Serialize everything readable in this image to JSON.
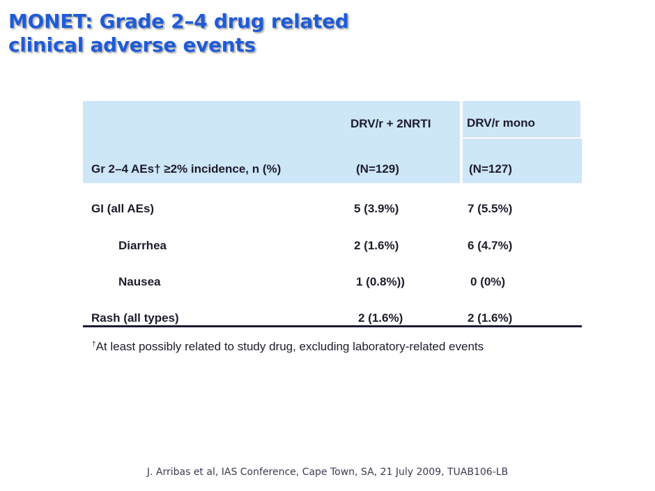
{
  "title": {
    "line1": "MONET: Grade 2–4 drug related",
    "line2": "clinical adverse events"
  },
  "table": {
    "columns": [
      "DRV/r + 2NRTI",
      "DRV/r mono"
    ],
    "subheader": {
      "label": "Gr 2–4 AEs† ≥2% incidence, n (%)",
      "n": [
        "(N=129)",
        "(N=127)"
      ]
    },
    "rows": [
      {
        "label": "GI (all AEs)",
        "values": [
          "5 (3.9%)",
          "7 (5.5%)"
        ]
      },
      {
        "label": "Diarrhea",
        "values": [
          "2 (1.6%)",
          "6 (4.7%)"
        ]
      },
      {
        "label": "Nausea",
        "values": [
          "1 (0.8%))",
          "0 (0%)"
        ]
      },
      {
        "label": "Rash (all types)",
        "values": [
          "2 (1.6%)",
          "2 (1.6%)"
        ]
      }
    ]
  },
  "footnote": {
    "mark": "†",
    "text": "At least possibly related to study drug, excluding laboratory-related events"
  },
  "citation": "J. Arribas et al, IAS Conference, Cape Town, SA, 21 July 2009, TUAB106-LB",
  "colors": {
    "title": "#1f5bd6",
    "header_band": "#cde6f8",
    "text": "#1c1c2c"
  }
}
